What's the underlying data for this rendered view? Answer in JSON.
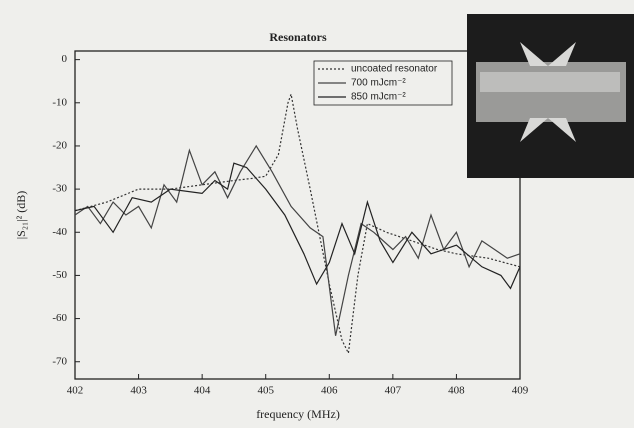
{
  "chart_data": {
    "type": "line",
    "title": "Resonators",
    "x_label": "frequency (MHz)",
    "y_label": "|S₂₁|² (dB)",
    "xlim": [
      402,
      409
    ],
    "xticks": [
      402,
      403,
      404,
      405,
      406,
      407,
      408,
      409
    ],
    "ylim": [
      -74,
      2
    ],
    "yticks": [
      0,
      -10,
      -20,
      -30,
      -40,
      -50,
      -60,
      -70
    ],
    "legend": "upper right",
    "series": [
      {
        "name": "uncoated resonator",
        "color": "#333333",
        "linestyle": "dotted",
        "x": [
          402,
          402.5,
          403,
          403.5,
          404,
          404.5,
          404.8,
          405,
          405.2,
          405.35,
          405.4,
          405.5,
          405.7,
          406.0,
          406.2,
          406.3,
          406.45,
          406.6,
          406.9,
          407.3,
          407.7,
          408,
          408.5,
          409
        ],
        "values": [
          -35,
          -33,
          -30,
          -30,
          -29,
          -28,
          -27.5,
          -27,
          -22,
          -10,
          -8,
          -16,
          -30,
          -52,
          -65,
          -68,
          -50,
          -38,
          -40,
          -42,
          -44,
          -45,
          -46,
          -48
        ]
      },
      {
        "name": "700 mJcm⁻²",
        "color": "#444444",
        "linestyle": "solid",
        "x": [
          402,
          402.2,
          402.4,
          402.6,
          402.8,
          403,
          403.2,
          403.4,
          403.6,
          403.8,
          404,
          404.2,
          404.4,
          404.6,
          404.85,
          405.1,
          405.4,
          405.7,
          405.9,
          406.1,
          406.3,
          406.5,
          406.7,
          407,
          407.2,
          407.4,
          407.6,
          407.8,
          408,
          408.2,
          408.4,
          408.6,
          408.8,
          409
        ],
        "values": [
          -36,
          -34,
          -38,
          -33,
          -36,
          -34,
          -39,
          -29,
          -33,
          -21,
          -29,
          -26,
          -32,
          -26,
          -20,
          -26,
          -34,
          -39,
          -41,
          -64,
          -50,
          -38,
          -40,
          -44,
          -41,
          -46,
          -36,
          -44,
          -40,
          -48,
          -42,
          -44,
          -46,
          -45
        ]
      },
      {
        "name": "850 mJcm⁻²",
        "color": "#222222",
        "linestyle": "solid",
        "x": [
          402,
          402.3,
          402.6,
          402.9,
          403.2,
          403.5,
          404,
          404.2,
          404.4,
          404.5,
          404.7,
          405,
          405.3,
          405.6,
          405.8,
          406,
          406.2,
          406.4,
          406.6,
          406.8,
          407,
          407.3,
          407.6,
          408,
          408.4,
          408.7,
          408.85,
          409
        ],
        "values": [
          -35,
          -34,
          -40,
          -32,
          -33,
          -30,
          -31,
          -28,
          -30,
          -24,
          -25,
          -30,
          -36,
          -45,
          -52,
          -47,
          -38,
          -45,
          -33,
          -42,
          -47,
          -40,
          -45,
          -43,
          -48,
          -50,
          -53,
          -48
        ]
      }
    ]
  }
}
